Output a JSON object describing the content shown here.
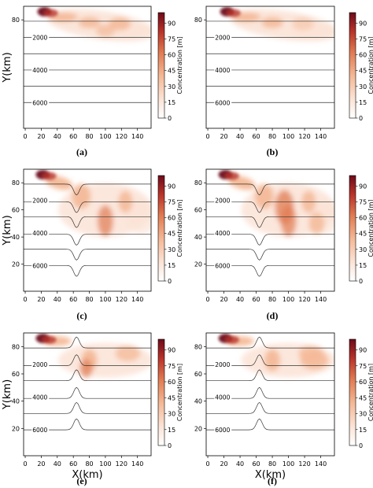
{
  "figure": {
    "colormap": [
      "#ffffff",
      "#fbe3d6",
      "#f4b896",
      "#e07b52",
      "#b8332a",
      "#6d0a1a"
    ],
    "contour_color": "#333333",
    "ylabel_text": "Y(km)",
    "xlabel_text": "X(km)"
  },
  "chart_data": [
    {
      "type": "heatmap",
      "panel_label": "(a)",
      "topography": "flat",
      "xlabel": "",
      "ylabel": "Y(km)",
      "colorbar_label": "Concentration [m]",
      "xlim": [
        0,
        160
      ],
      "ylim": [
        0,
        90
      ],
      "x_ticks": [
        "0",
        "20",
        "40",
        "60",
        "80",
        "100",
        "120",
        "140"
      ],
      "y_ticks": [
        "80"
      ],
      "contour_labels": [
        "2000",
        "4000",
        "6000"
      ],
      "colorbar_ticks": [
        "0",
        "15",
        "30",
        "45",
        "60",
        "75",
        "90"
      ],
      "colorbar_range": [
        0,
        100
      ],
      "plume_peak": {
        "x": 24,
        "y": 86,
        "value": 95
      }
    },
    {
      "type": "heatmap",
      "panel_label": "(b)",
      "topography": "flat",
      "xlabel": "",
      "ylabel": "",
      "colorbar_label": "Concentration [m]",
      "xlim": [
        0,
        160
      ],
      "ylim": [
        0,
        90
      ],
      "x_ticks": [
        "0",
        "20",
        "40",
        "60",
        "80",
        "100",
        "120",
        "140"
      ],
      "y_ticks": [
        "80"
      ],
      "contour_labels": [
        "2000",
        "4000",
        "6000"
      ],
      "colorbar_ticks": [
        "0",
        "15",
        "30",
        "45",
        "60",
        "75",
        "90"
      ],
      "colorbar_range": [
        0,
        100
      ],
      "plume_peak": {
        "x": 24,
        "y": 86,
        "value": 95
      }
    },
    {
      "type": "heatmap",
      "panel_label": "(c)",
      "topography": "valley",
      "xlabel": "",
      "ylabel": "Y(km)",
      "colorbar_label": "Concentration [m]",
      "xlim": [
        0,
        160
      ],
      "ylim": [
        0,
        90
      ],
      "x_ticks": [
        "0",
        "20",
        "40",
        "60",
        "80",
        "100",
        "120",
        "140"
      ],
      "y_ticks": [
        "80",
        "60",
        "40",
        "20"
      ],
      "contour_labels": [
        "2000",
        "4000",
        "6000"
      ],
      "colorbar_ticks": [
        "0",
        "15",
        "30",
        "45",
        "60",
        "75",
        "90"
      ],
      "colorbar_range": [
        0,
        100
      ],
      "plume_peak": {
        "x": 22,
        "y": 86,
        "value": 95
      }
    },
    {
      "type": "heatmap",
      "panel_label": "(d)",
      "topography": "valley",
      "xlabel": "",
      "ylabel": "",
      "colorbar_label": "Concentration [m]",
      "xlim": [
        0,
        160
      ],
      "ylim": [
        0,
        90
      ],
      "x_ticks": [
        "0",
        "20",
        "40",
        "60",
        "80",
        "100",
        "120",
        "140"
      ],
      "y_ticks": [
        "80",
        "60",
        "40",
        "20"
      ],
      "contour_labels": [
        "2000",
        "4000",
        "6000"
      ],
      "colorbar_ticks": [
        "0",
        "15",
        "30",
        "45",
        "60",
        "75",
        "90"
      ],
      "colorbar_range": [
        0,
        100
      ],
      "plume_peak": {
        "x": 22,
        "y": 86,
        "value": 95
      }
    },
    {
      "type": "heatmap",
      "panel_label": "(e)",
      "topography": "ridge",
      "xlabel": "X(km)",
      "ylabel": "Y(km)",
      "colorbar_label": "Concentration [m]",
      "xlim": [
        0,
        160
      ],
      "ylim": [
        0,
        90
      ],
      "x_ticks": [
        "0",
        "20",
        "40",
        "60",
        "80",
        "100",
        "120",
        "140"
      ],
      "y_ticks": [
        "80",
        "60",
        "40",
        "20"
      ],
      "contour_labels": [
        "2000",
        "4000",
        "6000"
      ],
      "colorbar_ticks": [
        "0",
        "15",
        "30",
        "45",
        "60",
        "75",
        "90"
      ],
      "colorbar_range": [
        0,
        100
      ],
      "plume_peak": {
        "x": 22,
        "y": 86,
        "value": 95
      }
    },
    {
      "type": "heatmap",
      "panel_label": "(f)",
      "topography": "ridge",
      "xlabel": "X(km)",
      "ylabel": "",
      "colorbar_label": "Concentration [m]",
      "xlim": [
        0,
        160
      ],
      "ylim": [
        0,
        90
      ],
      "x_ticks": [
        "0",
        "20",
        "40",
        "60",
        "80",
        "100",
        "120",
        "140"
      ],
      "y_ticks": [
        "80",
        "60",
        "40",
        "20"
      ],
      "contour_labels": [
        "2000",
        "4000",
        "6000"
      ],
      "colorbar_ticks": [
        "0",
        "15",
        "30",
        "45",
        "60",
        "75",
        "90"
      ],
      "colorbar_range": [
        0,
        100
      ],
      "plume_peak": {
        "x": 22,
        "y": 86,
        "value": 95
      }
    }
  ]
}
